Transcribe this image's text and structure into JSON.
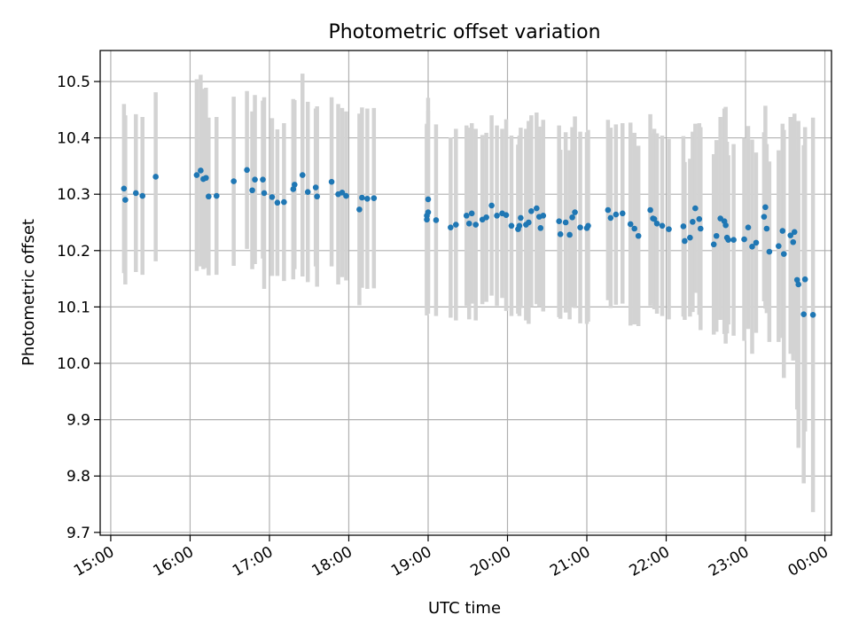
{
  "chart_data": {
    "type": "scatter",
    "title": "Photometric offset variation",
    "xlabel": "UTC time",
    "ylabel": "Photometric offset",
    "grid": true,
    "x_unit": "UTC time",
    "xlim": [
      "14:52",
      "00:05"
    ],
    "ylim": [
      9.695,
      10.555
    ],
    "x_ticks": [
      "15:00",
      "16:00",
      "17:00",
      "18:00",
      "19:00",
      "20:00",
      "21:00",
      "22:00",
      "23:00",
      "00:00"
    ],
    "y_ticks": [
      "9.7",
      "9.8",
      "9.9",
      "10.0",
      "10.1",
      "10.2",
      "10.3",
      "10.4",
      "10.5"
    ],
    "colors": {
      "points": "#1f77b4",
      "error_bars": "#d3d3d3",
      "grid": "#b0b0b0"
    },
    "series": [
      {
        "x": [
          "15:10",
          "15:11",
          "15:19",
          "15:24",
          "15:34",
          "16:05",
          "16:08",
          "16:10",
          "16:12",
          "16:14",
          "16:20",
          "16:33",
          "16:43",
          "16:47",
          "16:49",
          "16:55",
          "16:56",
          "17:02",
          "17:06",
          "17:11",
          "17:18",
          "17:19",
          "17:25",
          "17:29",
          "17:35",
          "17:36",
          "17:47",
          "17:52",
          "17:55",
          "17:58",
          "18:08",
          "18:10",
          "18:14",
          "18:19",
          "18:59",
          "18:59",
          "19:00",
          "19:00",
          "19:06",
          "19:17",
          "19:21",
          "19:29",
          "19:31",
          "19:33",
          "19:36",
          "19:41",
          "19:44",
          "19:48",
          "19:52",
          "19:56",
          "19:59",
          "20:03",
          "20:08",
          "20:09",
          "20:10",
          "20:14",
          "20:16",
          "20:18",
          "20:22",
          "20:24",
          "20:25",
          "20:27",
          "20:39",
          "20:40",
          "20:44",
          "20:47",
          "20:49",
          "20:51",
          "20:55",
          "21:00",
          "21:01",
          "21:16",
          "21:18",
          "21:22",
          "21:27",
          "21:33",
          "21:36",
          "21:39",
          "21:48",
          "21:50",
          "21:51",
          "21:53",
          "21:57",
          "22:02",
          "22:13",
          "22:14",
          "22:18",
          "22:20",
          "22:22",
          "22:25",
          "22:26",
          "22:36",
          "22:38",
          "22:41",
          "22:44",
          "22:45",
          "22:46",
          "22:47",
          "22:51",
          "22:59",
          "23:02",
          "23:05",
          "23:08",
          "23:14",
          "23:15",
          "23:16",
          "23:18",
          "23:25",
          "23:28",
          "23:29",
          "23:34",
          "23:36",
          "23:37",
          "23:39",
          "23:40",
          "23:44",
          "23:45",
          "23:51"
        ],
        "y": [
          10.31,
          10.29,
          10.302,
          10.297,
          10.331,
          10.334,
          10.342,
          10.327,
          10.329,
          10.296,
          10.297,
          10.323,
          10.343,
          10.307,
          10.326,
          10.326,
          10.302,
          10.295,
          10.285,
          10.286,
          10.309,
          10.317,
          10.334,
          10.304,
          10.312,
          10.296,
          10.322,
          10.3,
          10.303,
          10.297,
          10.273,
          10.294,
          10.292,
          10.293,
          10.262,
          10.255,
          10.268,
          10.291,
          10.254,
          10.241,
          10.246,
          10.262,
          10.248,
          10.266,
          10.246,
          10.255,
          10.259,
          10.28,
          10.262,
          10.266,
          10.263,
          10.244,
          10.238,
          10.244,
          10.258,
          10.246,
          10.25,
          10.27,
          10.275,
          10.26,
          10.24,
          10.262,
          10.252,
          10.229,
          10.25,
          10.228,
          10.259,
          10.268,
          10.241,
          10.24,
          10.244,
          10.272,
          10.258,
          10.264,
          10.266,
          10.247,
          10.239,
          10.226,
          10.272,
          10.257,
          10.256,
          10.248,
          10.244,
          10.238,
          10.243,
          10.217,
          10.223,
          10.251,
          10.275,
          10.256,
          10.239,
          10.211,
          10.226,
          10.257,
          10.252,
          10.245,
          10.223,
          10.219,
          10.219,
          10.22,
          10.241,
          10.207,
          10.214,
          10.26,
          10.277,
          10.239,
          10.198,
          10.208,
          10.235,
          10.194,
          10.227,
          10.215,
          10.233,
          10.148,
          10.14,
          10.087,
          10.149,
          10.086
        ],
        "yerr": [
          0.15,
          0.15,
          0.14,
          0.14,
          0.15,
          0.17,
          0.17,
          0.16,
          0.16,
          0.14,
          0.14,
          0.15,
          0.14,
          0.14,
          0.15,
          0.14,
          0.17,
          0.14,
          0.13,
          0.14,
          0.16,
          0.15,
          0.18,
          0.16,
          0.14,
          0.16,
          0.15,
          0.16,
          0.15,
          0.15,
          0.17,
          0.16,
          0.16,
          0.16,
          0.16,
          0.17,
          0.18,
          0.18,
          0.17,
          0.16,
          0.17,
          0.16,
          0.17,
          0.16,
          0.17,
          0.15,
          0.15,
          0.16,
          0.16,
          0.15,
          0.17,
          0.16,
          0.15,
          0.16,
          0.16,
          0.17,
          0.18,
          0.17,
          0.17,
          0.16,
          0.14,
          0.17,
          0.17,
          0.15,
          0.16,
          0.15,
          0.16,
          0.17,
          0.17,
          0.17,
          0.17,
          0.16,
          0.16,
          0.16,
          0.16,
          0.18,
          0.17,
          0.16,
          0.17,
          0.15,
          0.16,
          0.16,
          0.16,
          0.16,
          0.16,
          0.14,
          0.14,
          0.16,
          0.15,
          0.17,
          0.18,
          0.16,
          0.17,
          0.18,
          0.2,
          0.21,
          0.17,
          0.15,
          0.17,
          0.18,
          0.18,
          0.19,
          0.16,
          0.15,
          0.18,
          0.15,
          0.16,
          0.17,
          0.19,
          0.22,
          0.21,
          0.21,
          0.21,
          0.23,
          0.29,
          0.3,
          0.27,
          0.35
        ]
      }
    ]
  }
}
